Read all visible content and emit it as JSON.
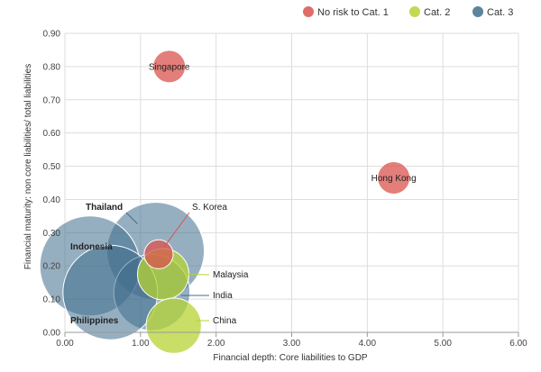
{
  "chart_data": {
    "type": "scatter",
    "subtype": "bubble",
    "xlabel": "Financial depth: Core liabilities to GDP",
    "ylabel": "Financial maturity: non core liabilities/ total liabilities",
    "xlim": [
      0,
      6
    ],
    "ylim": [
      0,
      0.9
    ],
    "x_ticks": [
      "0.00",
      "1.00",
      "2.00",
      "3.00",
      "4.00",
      "5.00",
      "6.00"
    ],
    "y_ticks": [
      "0.00",
      "0.10",
      "0.20",
      "0.30",
      "0.40",
      "0.50",
      "0.60",
      "0.70",
      "0.80",
      "0.90"
    ],
    "grid": true,
    "legend_position": "top-right",
    "series": [
      {
        "name": "No risk to Cat. 1",
        "color": "#d9534f",
        "points": [
          {
            "label": "Singapore",
            "x": 1.38,
            "y": 0.8,
            "size": 1
          },
          {
            "label": "Hong Kong",
            "x": 4.35,
            "y": 0.465,
            "size": 1
          },
          {
            "label": "S. Korea",
            "x": 1.24,
            "y": 0.235,
            "size": 0.8
          }
        ]
      },
      {
        "name": "Cat. 2",
        "color": "#b5d334",
        "points": [
          {
            "label": "Malaysia",
            "x": 1.3,
            "y": 0.175,
            "size": 2.5
          },
          {
            "label": "China",
            "x": 1.44,
            "y": 0.02,
            "size": 2.9
          }
        ]
      },
      {
        "name": "Cat. 3",
        "color": "#3f6e8c",
        "points": [
          {
            "label": "Thailand",
            "x": 1.2,
            "y": 0.245,
            "size": 9
          },
          {
            "label": "Indonesia",
            "x": 0.33,
            "y": 0.2,
            "size": 9.5
          },
          {
            "label": "India",
            "x": 1.15,
            "y": 0.12,
            "size": 5.5
          },
          {
            "label": "Philippines",
            "x": 0.6,
            "y": 0.12,
            "size": 8.5
          }
        ]
      }
    ]
  }
}
